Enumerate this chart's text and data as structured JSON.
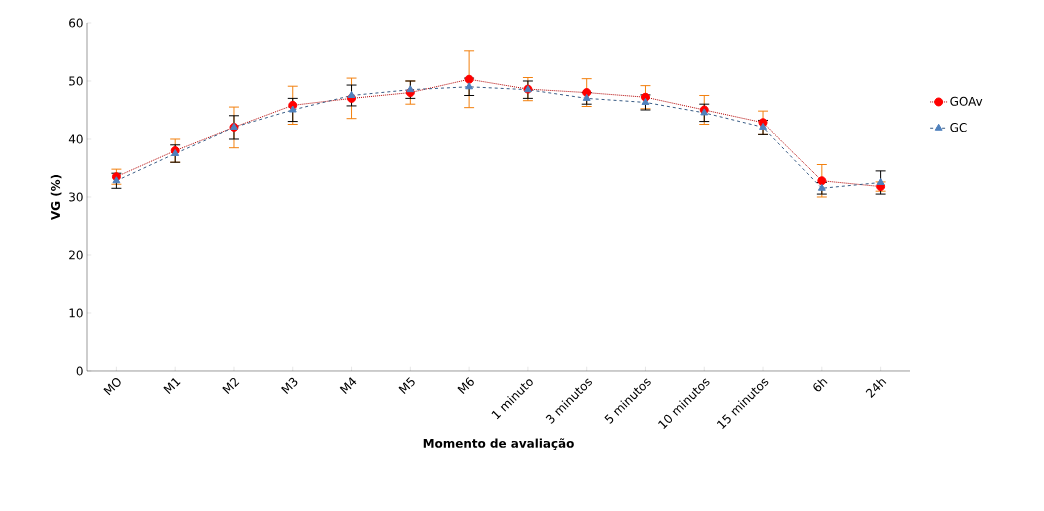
{
  "chart_data": {
    "type": "line",
    "xlabel": "Momento de avaliação",
    "ylabel": "VG (%)",
    "categories": [
      "MO",
      "M1",
      "M2",
      "M3",
      "M4",
      "M5",
      "M6",
      "1 minuto",
      "3 minutos",
      "5 minutos",
      "10 minutos",
      "15 minutos",
      "6h",
      "24h"
    ],
    "series": [
      {
        "name": "GOAv",
        "color": "#ff0000",
        "marker": "circle",
        "line_style": "dotted",
        "values": [
          33.5,
          38,
          42,
          45.8,
          47,
          48,
          50.3,
          48.6,
          48,
          47.2,
          45,
          42.8,
          32.8,
          31.8
        ],
        "errors": [
          1.3,
          2,
          3.5,
          3.3,
          3.5,
          2,
          4.9,
          2,
          2.4,
          2,
          2.5,
          2,
          2.8,
          0.8
        ]
      },
      {
        "name": "GC",
        "color": "#4f81bd",
        "marker": "triangle",
        "line_style": "dashed",
        "values": [
          32.8,
          37.5,
          42,
          45,
          47.5,
          48.5,
          49,
          48.5,
          47,
          46.3,
          44.5,
          42,
          31.5,
          32.5
        ],
        "errors": [
          1.3,
          1.5,
          2,
          2,
          1.8,
          1.5,
          1.5,
          1.5,
          1,
          1.3,
          1.5,
          1.2,
          1,
          2
        ]
      }
    ],
    "ylim": [
      0,
      60
    ],
    "yticks": [
      0,
      10,
      20,
      30,
      40,
      50,
      60
    ],
    "grid": false,
    "legend": "right"
  }
}
